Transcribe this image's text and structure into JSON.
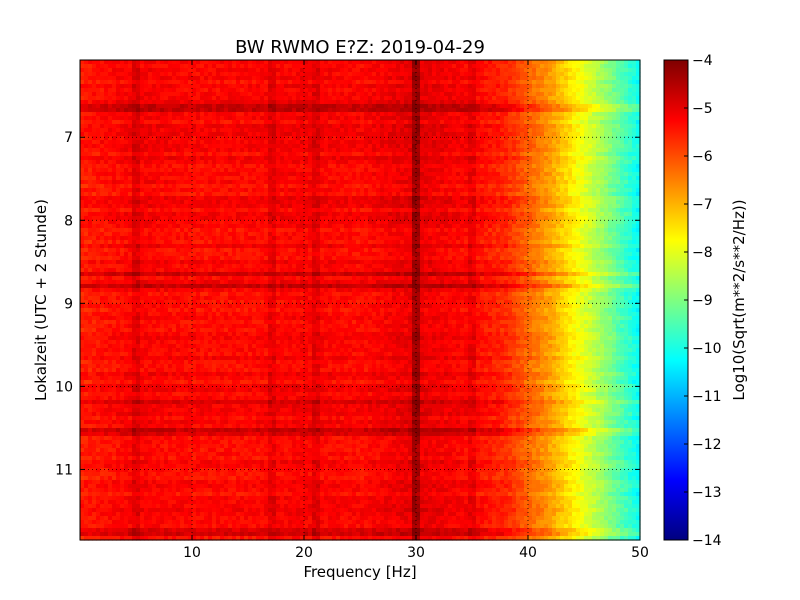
{
  "chart_data": {
    "type": "heatmap",
    "title": "BW RWMO E?Z: 2019-04-29",
    "xlabel": "Frequency [Hz]",
    "ylabel": "Lokalzeit (UTC + 2 Stunde)",
    "xlim": [
      0,
      50
    ],
    "ylim": [
      6.07,
      11.85
    ],
    "y_inverted": true,
    "xticks": [
      10,
      20,
      30,
      40,
      50
    ],
    "xtick_labels": [
      "10",
      "20",
      "30",
      "40",
      "50"
    ],
    "yticks": [
      7,
      8,
      9,
      10,
      11
    ],
    "ytick_labels": [
      "7",
      "8",
      "9",
      "10",
      "11"
    ],
    "grid": true,
    "grid_style": "dotted",
    "colormap": "jet",
    "colorbar": {
      "label": "Log10(Sqrt(m**2/s**2/Hz))",
      "min": -14,
      "max": -4,
      "ticks": [
        -4,
        -5,
        -6,
        -7,
        -8,
        -9,
        -10,
        -11,
        -12,
        -13,
        -14
      ],
      "tick_labels": [
        "−4",
        "−5",
        "−6",
        "−7",
        "−8",
        "−9",
        "−10",
        "−11",
        "−12",
        "−13",
        "−14"
      ]
    },
    "spectrum_profile": {
      "frequency_hz": [
        0,
        5,
        10,
        15,
        20,
        25,
        30,
        35,
        38,
        40,
        42,
        44,
        46,
        48,
        50
      ],
      "log10_amplitude": [
        -5.5,
        -5.2,
        -5.3,
        -5.3,
        -5.2,
        -5.3,
        -5.0,
        -5.3,
        -5.6,
        -6.2,
        -6.8,
        -7.6,
        -8.4,
        -9.3,
        -10.2
      ]
    },
    "features": {
      "persistent_peaks_hz": [
        5.0,
        17.0,
        21.0,
        30.0,
        35.0
      ],
      "strong_peaks_hz": [
        30.0
      ],
      "broadband_hours": [
        6.65,
        8.65,
        8.8,
        10.2,
        10.55,
        11.75
      ]
    }
  }
}
